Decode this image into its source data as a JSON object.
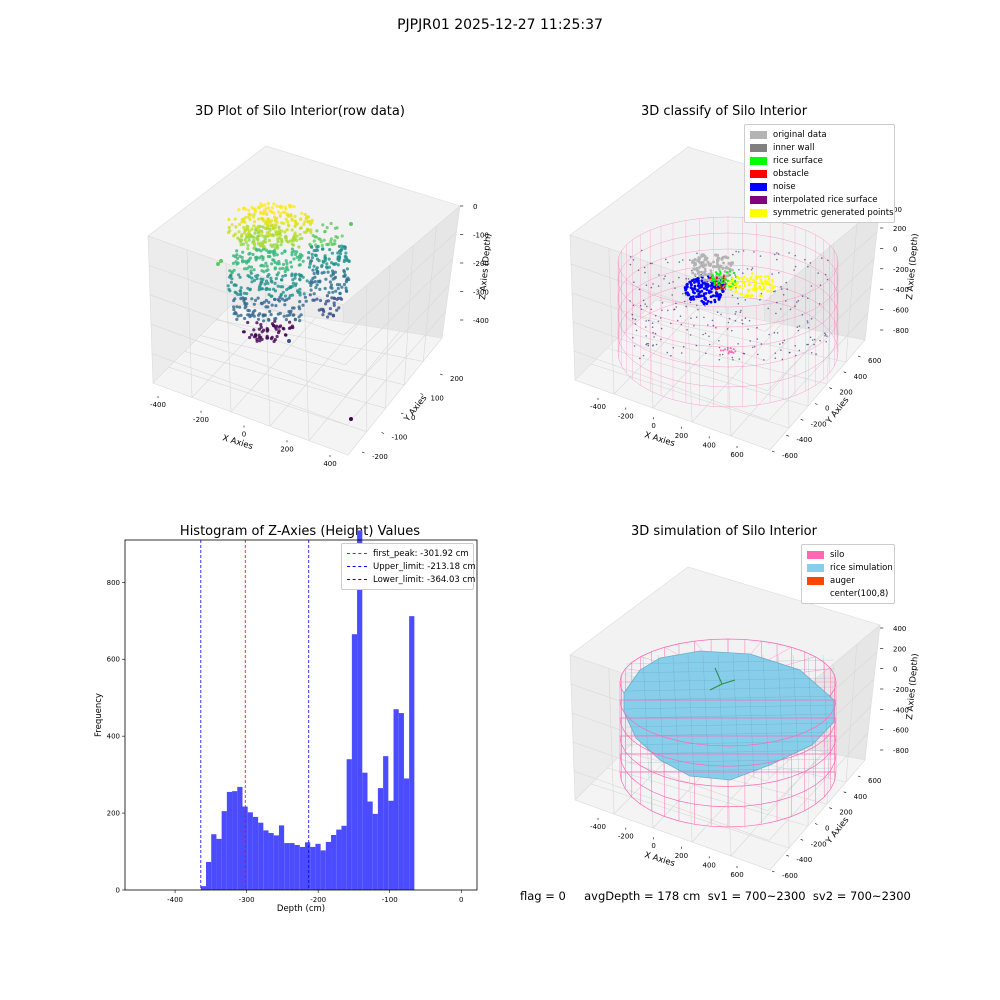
{
  "suptitle": "PJPJR01 2025-12-27 11:25:37",
  "status_line": "flag = 0     avgDepth = 178 cm  sv1 = 700~2300  sv2 = 700~2300",
  "colors": {
    "silo": "#ff69b4",
    "rice": "#87ceeb",
    "auger": "#ff4500",
    "original": "#b3b3b3",
    "inner_wall": "#808080",
    "rice_surface": "#00ff00",
    "obstacle": "#ff0000",
    "noise": "#0000ff",
    "interp": "#800080",
    "sym": "#ffff00",
    "hist_bar": "#4b4bff"
  },
  "chart_data": [
    {
      "type": "scatter",
      "title": "3D Plot of Silo Interior(row data)",
      "xlabel": "X Axies",
      "ylabel": "Y Axies",
      "zlabel": "Z Axies (Depth)",
      "x_ticks": [
        "-400",
        "-200",
        "0",
        "200",
        "400"
      ],
      "y_ticks": [
        "-200",
        "-100",
        "0",
        "100",
        "200"
      ],
      "z_ticks": [
        "0",
        "-100",
        "-200",
        "-300",
        "-400"
      ],
      "colormap": "viridis"
    },
    {
      "type": "scatter",
      "title": "3D classify of Silo Interior",
      "xlabel": "X Axies",
      "ylabel": "Y Axies",
      "zlabel": "Z Axies (Depth)",
      "x_ticks": [
        "-400",
        "-200",
        "0",
        "200",
        "400",
        "600"
      ],
      "y_ticks": [
        "-600",
        "-400",
        "-200",
        "0",
        "200",
        "400",
        "600"
      ],
      "z_ticks": [
        "200",
        "0",
        "-200",
        "-400",
        "-600",
        "-800"
      ],
      "z_top_tick_partial": "00",
      "legend": [
        {
          "label": "original data",
          "color": "#b3b3b3"
        },
        {
          "label": "inner wall",
          "color": "#808080"
        },
        {
          "label": "rice surface",
          "color": "#00ff00"
        },
        {
          "label": "obstacle",
          "color": "#ff0000"
        },
        {
          "label": "noise",
          "color": "#0000ff"
        },
        {
          "label": "interpolated rice surface",
          "color": "#800080"
        },
        {
          "label": "symmetric generated points",
          "color": "#ffff00"
        }
      ]
    },
    {
      "type": "bar",
      "title": "Histogram of Z-Axies (Height) Values",
      "xlabel": "Depth (cm)",
      "ylabel": "Frequency",
      "xlim": [
        -470,
        22
      ],
      "ylim": [
        0,
        910
      ],
      "x_ticks": [
        -400,
        -300,
        -200,
        -100,
        0
      ],
      "y_ticks": [
        0,
        200,
        400,
        600,
        800
      ],
      "bin_start": -364.03,
      "bin_width": 7.28,
      "values": [
        10,
        73,
        145,
        133,
        205,
        255,
        257,
        268,
        217,
        202,
        190,
        175,
        155,
        148,
        142,
        168,
        122,
        122,
        117,
        112,
        124,
        112,
        120,
        103,
        125,
        143,
        157,
        167,
        340,
        665,
        935,
        305,
        230,
        198,
        265,
        348,
        232,
        470,
        460,
        290,
        712
      ],
      "vlines": [
        {
          "label": "first_peak: -301.92 cm",
          "x": -301.92,
          "color": "#ff0000"
        },
        {
          "label": "Upper_limit: -213.18 cm",
          "x": -213.18,
          "color": "#0000ff"
        },
        {
          "label": "Lower_limit: -364.03 cm",
          "x": -364.03,
          "color": "#0000ff"
        }
      ],
      "legend_position": "top-right"
    },
    {
      "type": "area",
      "title": "3D simulation of Silo Interior",
      "xlabel": "X Axies",
      "ylabel": "Y Axies",
      "zlabel": "Z Axies (Depth)",
      "x_ticks": [
        "-400",
        "-200",
        "0",
        "200",
        "400",
        "600"
      ],
      "y_ticks": [
        "-600",
        "-400",
        "-200",
        "0",
        "200",
        "400",
        "600"
      ],
      "z_ticks": [
        "400",
        "200",
        "0",
        "-200",
        "-400",
        "-600",
        "-800"
      ],
      "legend": [
        {
          "label": "silo",
          "color": "#ff69b4"
        },
        {
          "label": "rice simulation",
          "color": "#87ceeb"
        },
        {
          "label": "auger",
          "color": "#ff4500"
        },
        {
          "label": "center(100,8)",
          "color": "none"
        }
      ]
    }
  ]
}
